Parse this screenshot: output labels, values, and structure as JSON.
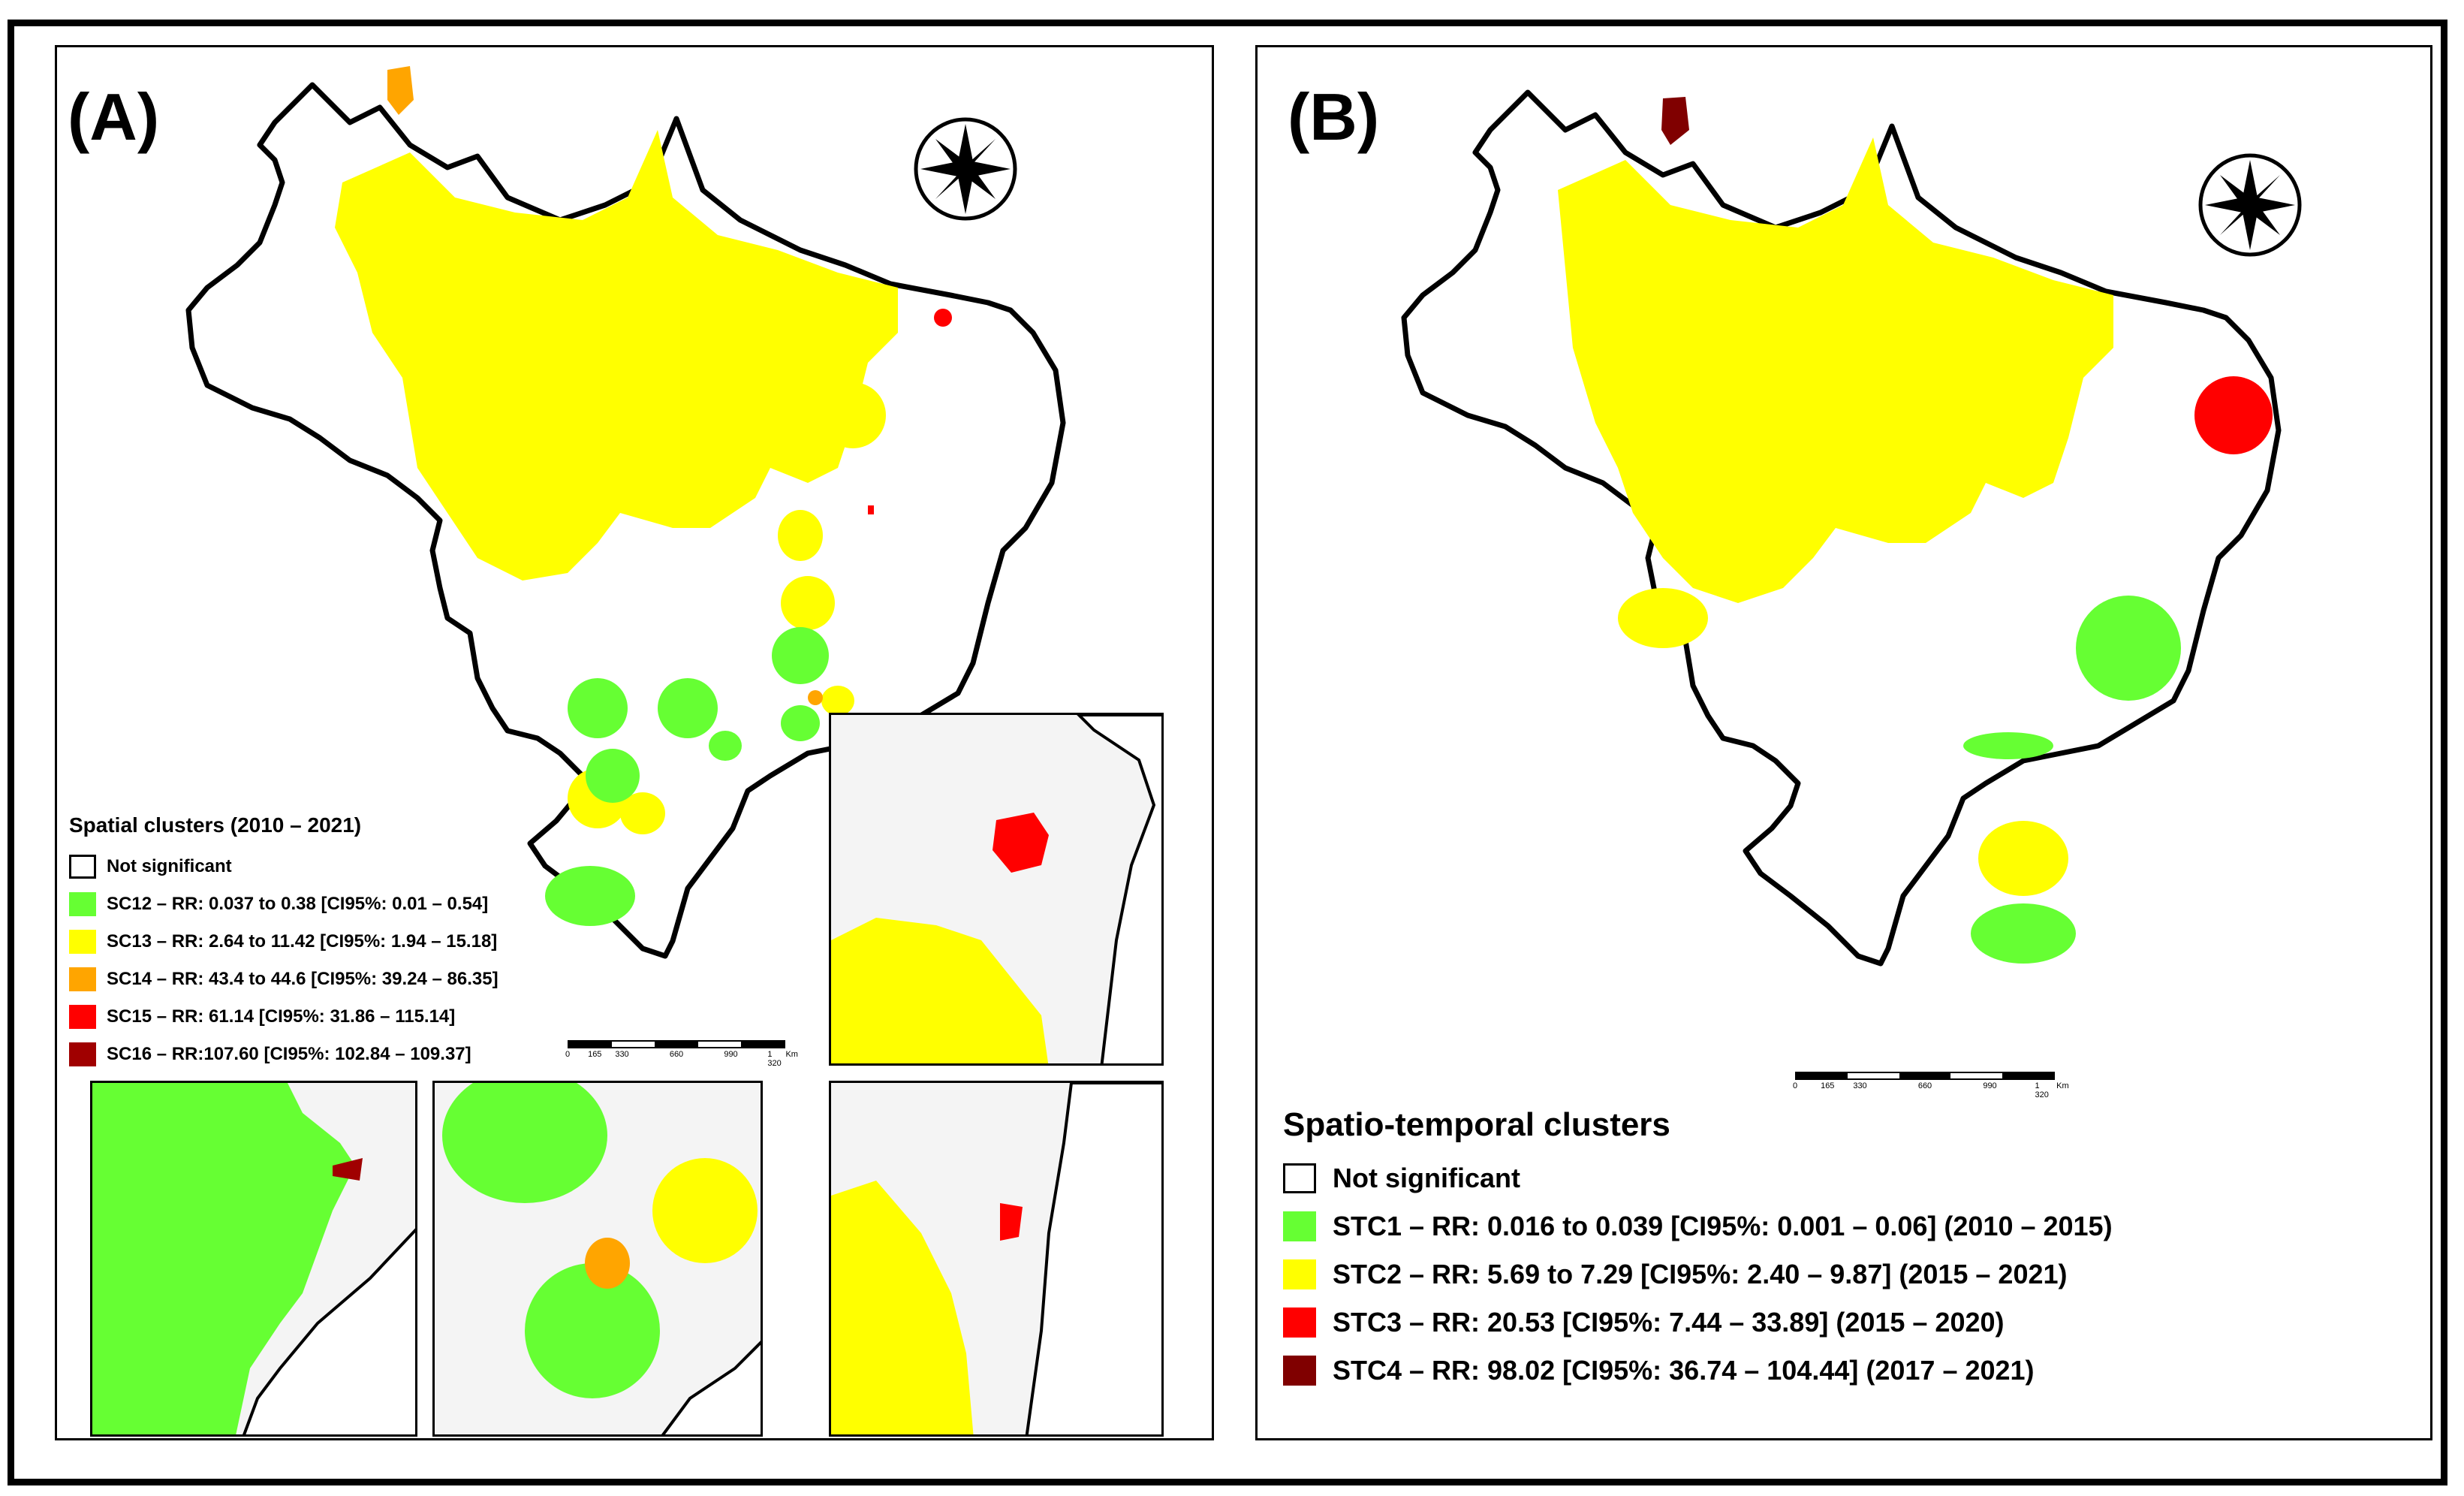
{
  "colors": {
    "not_significant": "#ffffff",
    "green": "#66ff33",
    "yellow": "#ffff00",
    "orange": "#ffa500",
    "red": "#ff0000",
    "dark_red": "#a00000",
    "maroon": "#800000"
  },
  "panel_a": {
    "label": "(A)",
    "legend": {
      "title": "Spatial clusters (2010 – 2021)",
      "items": [
        {
          "label": "Not significant",
          "color": "#ffffff"
        },
        {
          "label": "SC12 – RR: 0.037 to 0.38 [CI95%: 0.01 – 0.54]",
          "color": "#66ff33"
        },
        {
          "label": "SC13 – RR: 2.64 to 11.42 [CI95%: 1.94 – 15.18]",
          "color": "#ffff00"
        },
        {
          "label": "SC14 – RR: 43.4 to 44.6 [CI95%: 39.24 – 86.35]",
          "color": "#ffa500"
        },
        {
          "label": "SC15 – RR: 61.14 [CI95%: 31.86 – 115.14]",
          "color": "#ff0000"
        },
        {
          "label": "SC16 – RR:107.60 [CI95%: 102.84 – 109.37]",
          "color": "#a00000"
        }
      ]
    },
    "scale": {
      "ticks": [
        "0",
        "165",
        "330",
        "660",
        "990",
        "1 320"
      ],
      "unit": "Km"
    },
    "compass": "compass-rose-icon"
  },
  "panel_b": {
    "label": "(B)",
    "legend": {
      "title": "Spatio-temporal clusters",
      "items": [
        {
          "label": "Not significant",
          "color": "#ffffff"
        },
        {
          "label": "STC1 – RR: 0.016 to 0.039 [CI95%: 0.001 – 0.06] (2010 – 2015)",
          "color": "#66ff33"
        },
        {
          "label": "STC2 – RR: 5.69 to 7.29 [CI95%: 2.40 – 9.87] (2015 – 2021)",
          "color": "#ffff00"
        },
        {
          "label": "STC3 – RR: 20.53 [CI95%: 7.44 – 33.89] (2015 – 2020)",
          "color": "#ff0000"
        },
        {
          "label": "STC4 – RR: 98.02 [CI95%: 36.74 – 104.44] (2017 – 2021)",
          "color": "#800000"
        }
      ]
    },
    "scale": {
      "ticks": [
        "0",
        "165",
        "330",
        "660",
        "990",
        "1 320"
      ],
      "unit": "Km"
    },
    "compass": "compass-rose-icon"
  }
}
